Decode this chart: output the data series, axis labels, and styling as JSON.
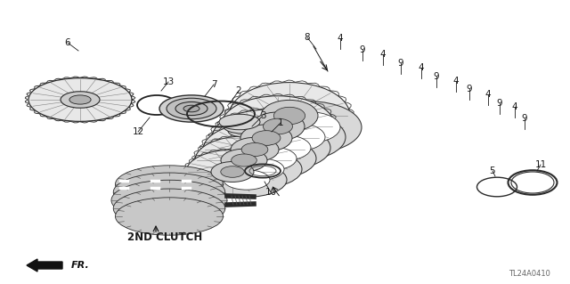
{
  "bg_color": "#ffffff",
  "diagram_code": "TL24A0410",
  "label_2nd_clutch": "2ND CLUTCH",
  "label_fr": "FR.",
  "line_color": "#1a1a1a",
  "text_color": "#1a1a1a",
  "gray_dark": "#2a2a2a",
  "gray_mid": "#555555",
  "gray_light": "#888888"
}
